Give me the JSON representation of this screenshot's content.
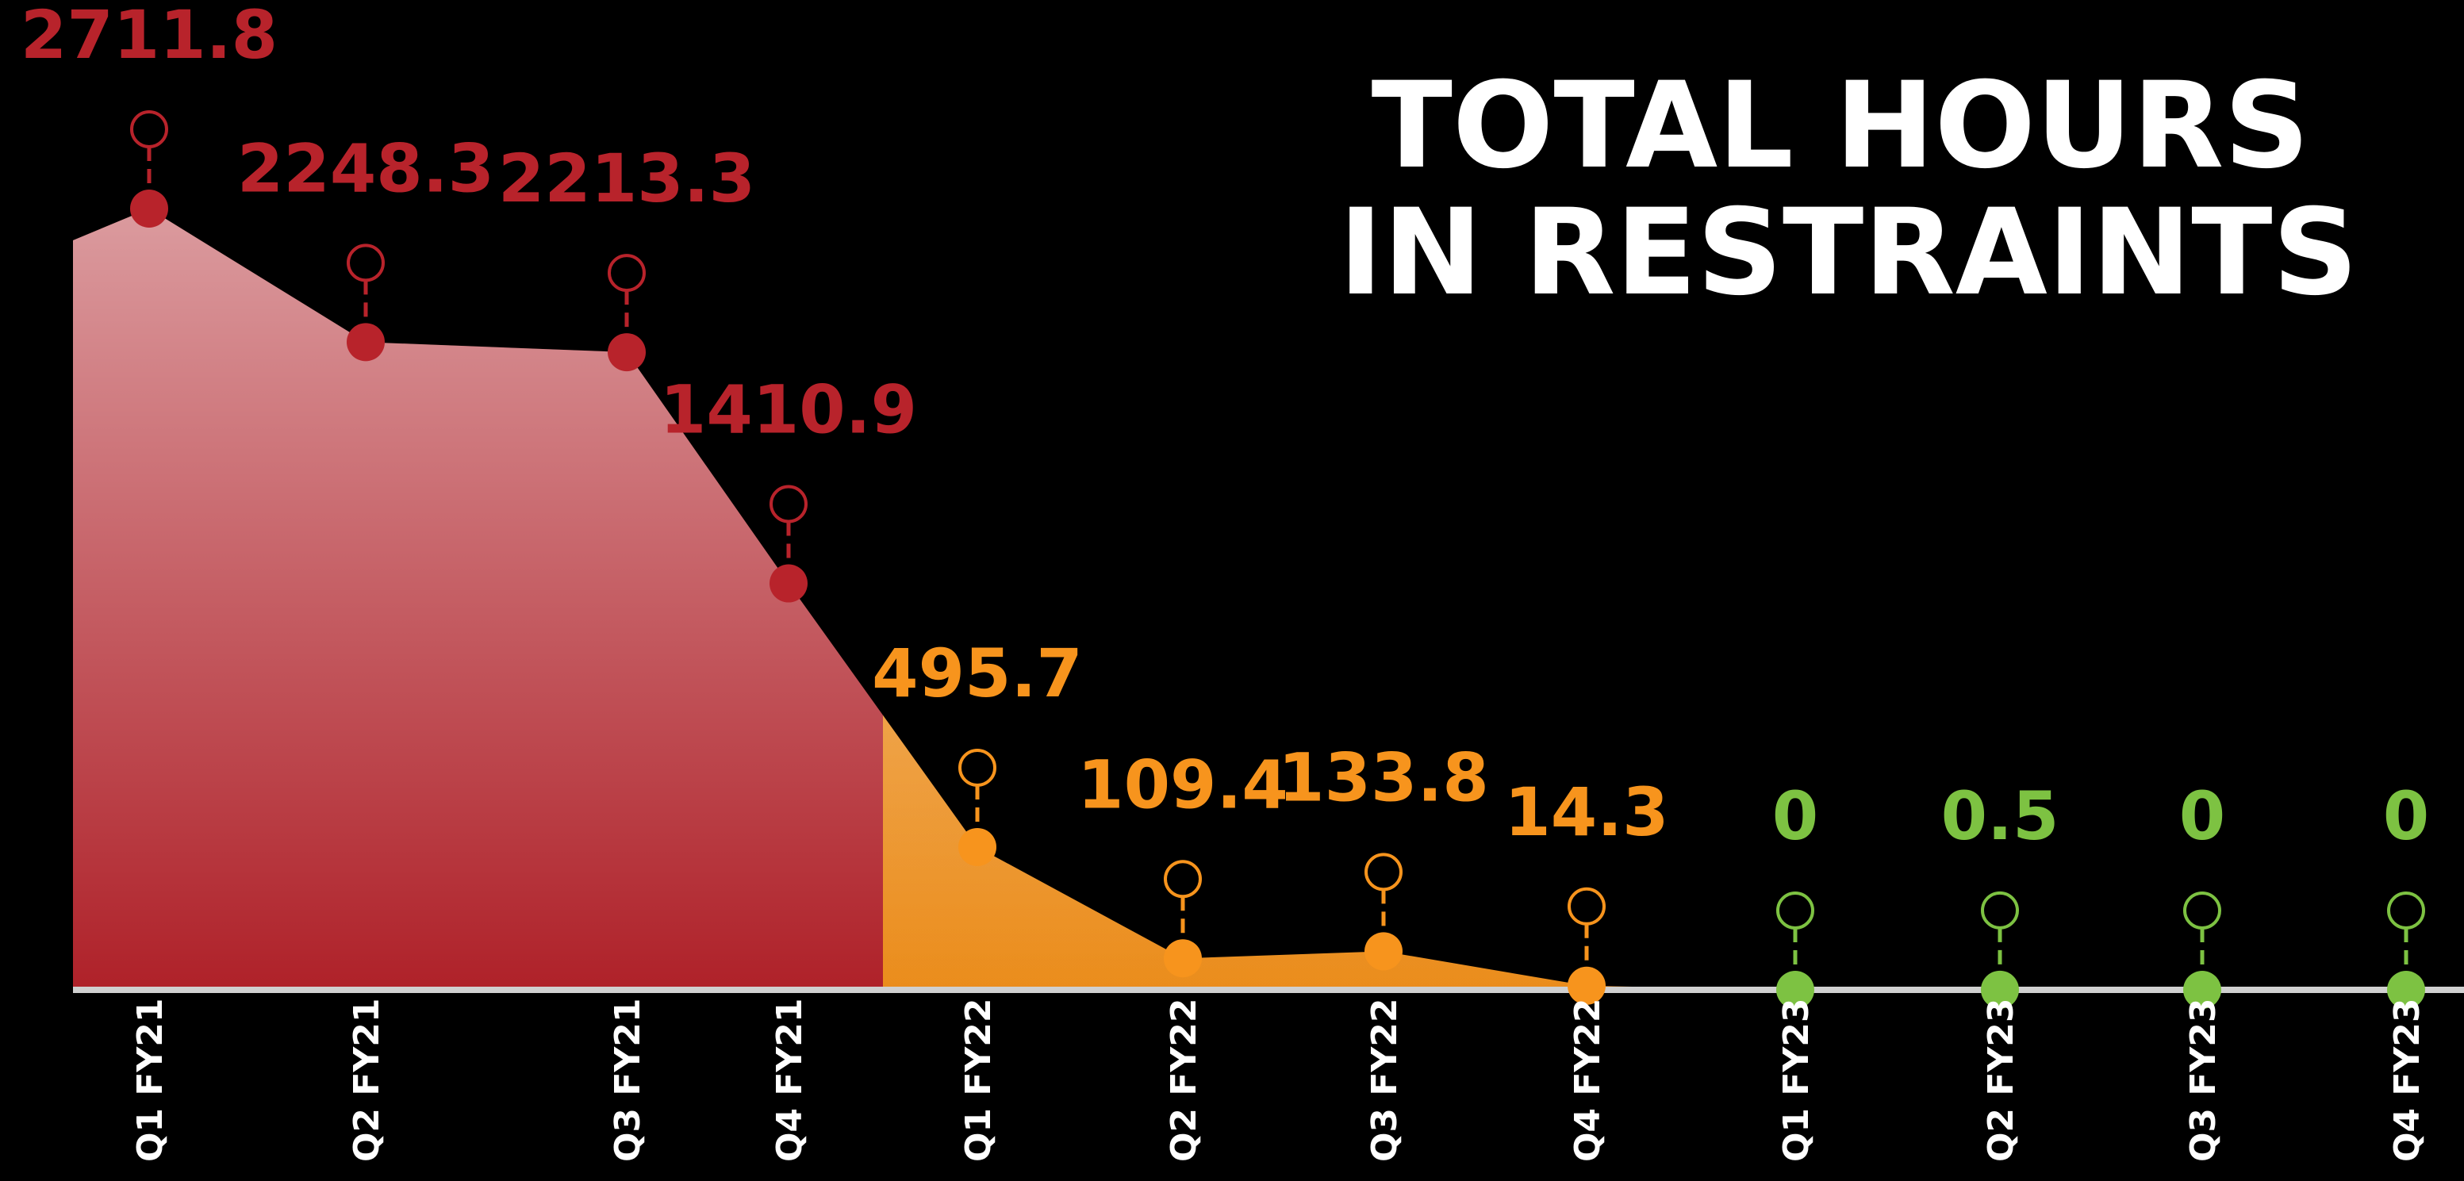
{
  "chart_data": {
    "type": "area",
    "title_lines": [
      "TOTAL HOURS",
      "IN RESTRAINTS"
    ],
    "categories": [
      "Q1 FY21",
      "Q2 FY21",
      "Q3 FY21",
      "Q4 FY21",
      "Q1 FY22",
      "Q2 FY22",
      "Q3 FY22",
      "Q4 FY22",
      "Q1 FY23",
      "Q2 FY23",
      "Q3 FY23",
      "Q4 FY23"
    ],
    "values": [
      2711.8,
      2248.3,
      2213.3,
      1410.9,
      495.7,
      109.4,
      133.8,
      14.3,
      0,
      0.5,
      0,
      0
    ],
    "point_colors": [
      "#b8232b",
      "#b8232b",
      "#b8232b",
      "#b8232b",
      "#f7941d",
      "#f7941d",
      "#f7941d",
      "#f7941d",
      "#7dc242",
      "#7dc242",
      "#7dc242",
      "#7dc242"
    ]
  }
}
